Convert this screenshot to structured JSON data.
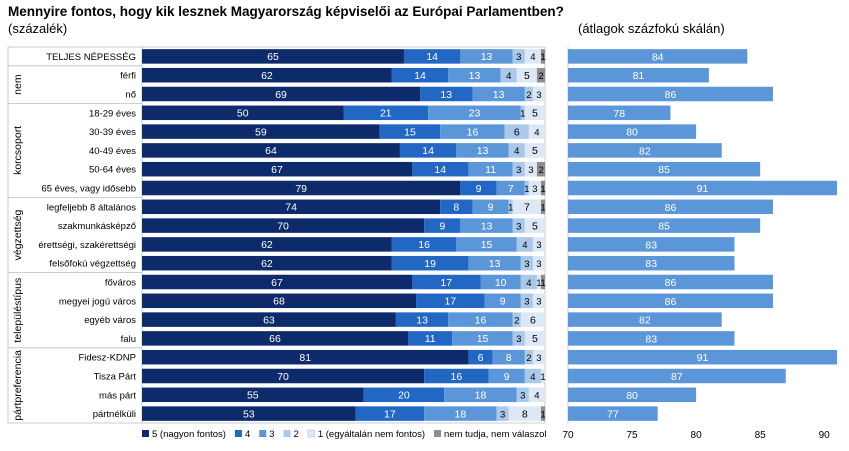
{
  "chart_data": [
    {
      "type": "bar",
      "stacked": true,
      "orientation": "horizontal",
      "title": "Mennyire fontos, hogy kik lesznek Magyarország képviselői az Európai Parlamentben?",
      "unit": "(százalék)",
      "xlim": [
        0,
        100
      ],
      "groups": [
        {
          "label": "",
          "rows": [
            0
          ]
        },
        {
          "label": "nem",
          "rows": [
            1,
            2
          ]
        },
        {
          "label": "korcsoport",
          "rows": [
            3,
            4,
            5,
            6,
            7
          ]
        },
        {
          "label": "végzettség",
          "rows": [
            8,
            9,
            10,
            11
          ]
        },
        {
          "label": "településtípus",
          "rows": [
            12,
            13,
            14,
            15
          ]
        },
        {
          "label": "pártpreferencia",
          "rows": [
            16,
            17,
            18,
            19
          ]
        }
      ],
      "categories": [
        "TELJES NÉPESSÉG",
        "férfi",
        "nő",
        "18-29 éves",
        "30-39 éves",
        "40-49 éves",
        "50-64 éves",
        "65 éves, vagy idősebb",
        "legfeljebb 8 általános",
        "szakmunkásképző",
        "érettségi, szakérettségi",
        "felsőfokú végzettség",
        "főváros",
        "megyei jogú város",
        "egyéb város",
        "falu",
        "Fidesz-KDNP",
        "Tisza Párt",
        "más párt",
        "pártnélküli"
      ],
      "series": [
        {
          "name": "5 (nagyon fontos)",
          "color": "#0d2a6b",
          "values": [
            65,
            62,
            69,
            50,
            59,
            64,
            67,
            79,
            74,
            70,
            62,
            62,
            67,
            68,
            63,
            66,
            81,
            70,
            55,
            53
          ]
        },
        {
          "name": "4",
          "color": "#2267c4",
          "values": [
            14,
            14,
            13,
            21,
            15,
            14,
            14,
            9,
            8,
            9,
            16,
            19,
            17,
            17,
            13,
            11,
            6,
            16,
            20,
            17
          ]
        },
        {
          "name": "3",
          "color": "#5b97d8",
          "values": [
            13,
            13,
            13,
            23,
            16,
            13,
            11,
            7,
            9,
            13,
            15,
            13,
            10,
            9,
            16,
            15,
            8,
            9,
            18,
            18
          ]
        },
        {
          "name": "2",
          "color": "#a9c8ea",
          "values": [
            3,
            4,
            2,
            1,
            6,
            4,
            3,
            1,
            1,
            3,
            4,
            3,
            4,
            3,
            2,
            3,
            2,
            4,
            3,
            3
          ]
        },
        {
          "name": "1 (egyáltalán nem fontos)",
          "color": "#dce8f6",
          "values": [
            4,
            5,
            3,
            5,
            4,
            5,
            3,
            3,
            7,
            5,
            3,
            3,
            1,
            3,
            6,
            5,
            3,
            1,
            4,
            8
          ]
        },
        {
          "name": "nem tudja, nem válaszol",
          "color": "#8c8c8c",
          "values": [
            1,
            2,
            0,
            0,
            0,
            0,
            2,
            1,
            1,
            0,
            0,
            0,
            1,
            0,
            0,
            0,
            0,
            0,
            0,
            1
          ]
        }
      ]
    },
    {
      "type": "bar",
      "orientation": "horizontal",
      "title": "(átlagok százfokú skálán)",
      "color": "#5b97d8",
      "xlim": [
        70,
        91
      ],
      "ticks": [
        70,
        75,
        80,
        85,
        90
      ],
      "values": [
        84,
        81,
        86,
        78,
        80,
        82,
        85,
        91,
        86,
        85,
        83,
        83,
        86,
        86,
        82,
        83,
        91,
        87,
        80,
        77
      ]
    }
  ]
}
